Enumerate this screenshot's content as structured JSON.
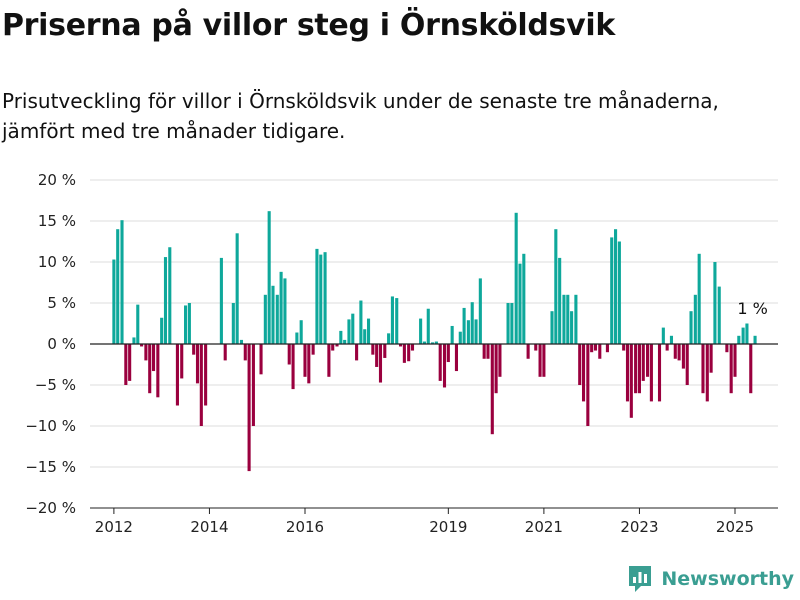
{
  "header": {
    "title": "Priserna på villor steg i Örnsköldsvik",
    "subtitle": "Prisutveckling för villor i Örnsköldsvik under de senaste tre månaderna, jämfört med tre månader tidigare."
  },
  "brand": {
    "name": "Newsworthy",
    "color": "#3a9e92"
  },
  "colors": {
    "positive": "#0ea89b",
    "negative": "#9a003e",
    "zero_line": "#222222",
    "grid": "#dddddd"
  },
  "chart_data": {
    "type": "bar",
    "title": "Priserna på villor steg i Örnsköldsvik",
    "subtitle": "Prisutveckling för villor i Örnsköldsvik under de senaste tre månaderna, jämfört med tre månader tidigare.",
    "xlabel": "",
    "ylabel": "",
    "ylim": [
      -20,
      20
    ],
    "yticks": [
      20,
      15,
      10,
      5,
      0,
      -5,
      -10,
      -15,
      -20
    ],
    "ytick_labels": [
      "20 %",
      "15 %",
      "10 %",
      "5 %",
      "0 %",
      "−5 %",
      "−10 %",
      "−15 %",
      "−20 %"
    ],
    "xlim": [
      2011.5,
      2025.9
    ],
    "xticks": [
      2012,
      2014,
      2016,
      2019,
      2021,
      2023,
      2025
    ],
    "xtick_labels": [
      "2012",
      "2014",
      "2016",
      "2019",
      "2021",
      "2023",
      "2025"
    ],
    "grid": true,
    "legend": "none",
    "annotation": {
      "text": "1 %",
      "x": 2025.2,
      "y": 1
    },
    "x": [
      2012.0,
      2012.08,
      2012.17,
      2012.25,
      2012.33,
      2012.42,
      2012.5,
      2012.58,
      2012.67,
      2012.75,
      2012.83,
      2012.92,
      2013.0,
      2013.08,
      2013.17,
      2013.25,
      2013.33,
      2013.42,
      2013.5,
      2013.58,
      2013.67,
      2013.75,
      2013.83,
      2013.92,
      2014.0,
      2014.08,
      2014.17,
      2014.25,
      2014.33,
      2014.42,
      2014.5,
      2014.58,
      2014.67,
      2014.75,
      2014.83,
      2014.92,
      2015.0,
      2015.08,
      2015.17,
      2015.25,
      2015.33,
      2015.42,
      2015.5,
      2015.58,
      2015.67,
      2015.75,
      2015.83,
      2015.92,
      2016.0,
      2016.08,
      2016.17,
      2016.25,
      2016.33,
      2016.42,
      2016.5,
      2016.58,
      2016.67,
      2016.75,
      2016.83,
      2016.92,
      2017.0,
      2017.08,
      2017.17,
      2017.25,
      2017.33,
      2017.42,
      2017.5,
      2017.58,
      2017.67,
      2017.75,
      2017.83,
      2017.92,
      2018.0,
      2018.08,
      2018.17,
      2018.25,
      2018.33,
      2018.42,
      2018.5,
      2018.58,
      2018.67,
      2018.75,
      2018.83,
      2018.92,
      2019.0,
      2019.08,
      2019.17,
      2019.25,
      2019.33,
      2019.42,
      2019.5,
      2019.58,
      2019.67,
      2019.75,
      2019.83,
      2019.92,
      2020.0,
      2020.08,
      2020.17,
      2020.25,
      2020.33,
      2020.42,
      2020.5,
      2020.58,
      2020.67,
      2020.75,
      2020.83,
      2020.92,
      2021.0,
      2021.08,
      2021.17,
      2021.25,
      2021.33,
      2021.42,
      2021.5,
      2021.58,
      2021.67,
      2021.75,
      2021.83,
      2021.92,
      2022.0,
      2022.08,
      2022.17,
      2022.25,
      2022.33,
      2022.42,
      2022.5,
      2022.58,
      2022.67,
      2022.75,
      2022.83,
      2022.92,
      2023.0,
      2023.08,
      2023.17,
      2023.25,
      2023.33,
      2023.42,
      2023.5,
      2023.58,
      2023.67,
      2023.75,
      2023.83,
      2023.92,
      2024.0,
      2024.08,
      2024.17,
      2024.25,
      2024.33,
      2024.42,
      2024.5,
      2024.58,
      2024.67,
      2024.75,
      2024.83,
      2024.92,
      2025.0,
      2025.08,
      2025.17,
      2025.25,
      2025.33,
      2025.42
    ],
    "values": [
      10.3,
      14,
      15.1,
      -5,
      -4.5,
      0.8,
      4.8,
      -0.3,
      -2,
      -6,
      -3.3,
      -6.5,
      3.2,
      10.6,
      11.8,
      0,
      -7.5,
      -4.2,
      4.7,
      5,
      -1.3,
      -4.8,
      -10,
      -7.5,
      0,
      0,
      0,
      10.5,
      -2,
      0,
      5,
      13.5,
      0.5,
      -2,
      -15.5,
      -10,
      0,
      -3.7,
      6,
      16.2,
      7.1,
      6,
      8.8,
      8,
      -2.5,
      -5.5,
      1.4,
      2.9,
      -4,
      -4.8,
      -1.3,
      11.6,
      10.9,
      11.2,
      -4,
      -0.8,
      -0.3,
      1.6,
      0.5,
      3,
      3.7,
      -2,
      5.3,
      1.8,
      3.1,
      -1.3,
      -2.8,
      -4.7,
      -1.7,
      1.3,
      5.8,
      5.6,
      -0.3,
      -2.3,
      -2.1,
      -0.8,
      0,
      3.1,
      0.3,
      4.3,
      0.2,
      0.3,
      -4.5,
      -5.3,
      -2.2,
      2.2,
      -3.3,
      1.5,
      4.4,
      2.9,
      5.1,
      3,
      8,
      -1.8,
      -1.8,
      -11,
      -6,
      -4,
      0,
      5,
      5,
      16,
      9.8,
      11,
      -1.8,
      0,
      -0.8,
      -4,
      -4,
      0,
      4,
      14,
      10.5,
      6,
      6,
      4,
      6,
      -5,
      -7,
      -10,
      -1,
      -0.8,
      -1.8,
      0,
      -1,
      13,
      14,
      12.5,
      -0.8,
      -7,
      -9,
      -6,
      -6,
      -4.5,
      -4,
      -7,
      0,
      -7,
      2,
      -0.8,
      1,
      -1.8,
      -2,
      -3,
      -5,
      4,
      6,
      11,
      -6,
      -7,
      -3.5,
      10,
      7,
      0,
      -1,
      -6,
      -4,
      1,
      2,
      2.5,
      -6,
      1
    ]
  }
}
